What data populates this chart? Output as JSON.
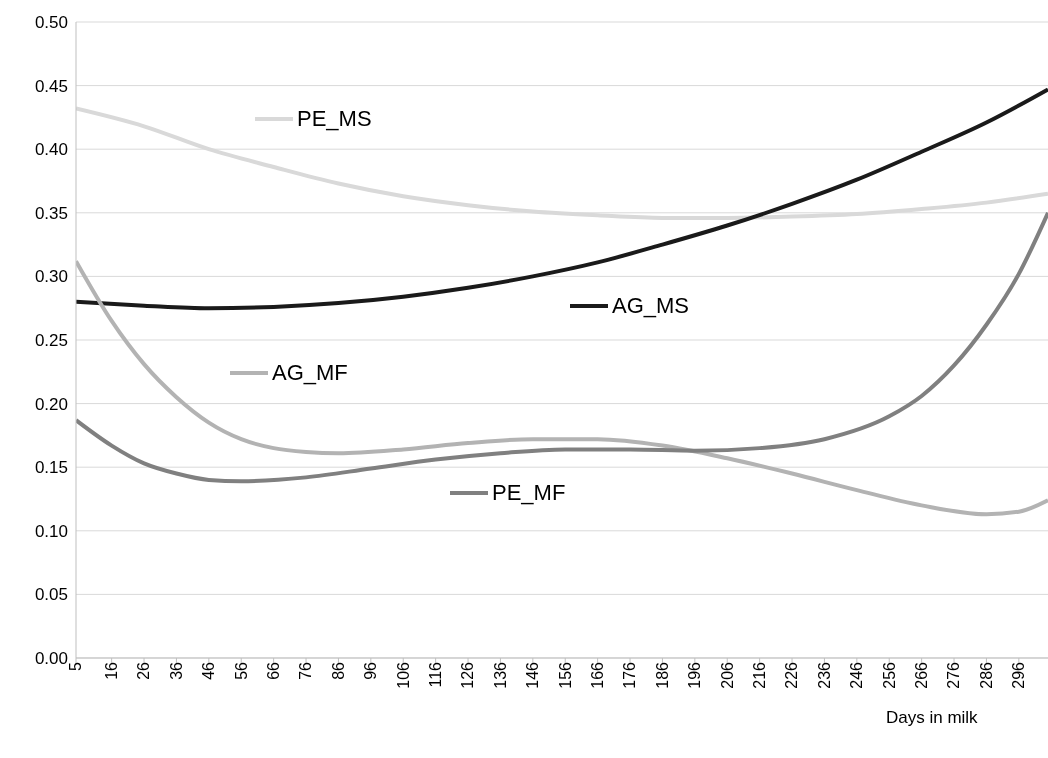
{
  "chart_data": {
    "type": "line",
    "xlabel": "Days in milk",
    "xlim": [
      5,
      305
    ],
    "xticks": [
      5,
      16,
      26,
      36,
      46,
      56,
      66,
      76,
      86,
      96,
      106,
      116,
      126,
      136,
      146,
      156,
      166,
      176,
      186,
      196,
      206,
      216,
      226,
      236,
      246,
      256,
      266,
      276,
      286,
      296
    ],
    "ylim": [
      0,
      0.5
    ],
    "yticks": [
      {
        "value": 0,
        "label": "0.00"
      },
      {
        "value": 0.05,
        "label": "0.05"
      },
      {
        "value": 0.1,
        "label": "0.10"
      },
      {
        "value": 0.15,
        "label": "0.15"
      },
      {
        "value": 0.2,
        "label": "0.20"
      },
      {
        "value": 0.25,
        "label": "0.25"
      },
      {
        "value": 0.3,
        "label": "0.30"
      },
      {
        "value": 0.35,
        "label": "0.35"
      },
      {
        "value": 0.4,
        "label": "0.40"
      },
      {
        "value": 0.45,
        "label": "0.45"
      },
      {
        "value": 0.5,
        "label": "0.50"
      }
    ],
    "grid": "y",
    "legend": "left",
    "marker": "none",
    "line_style": "solid",
    "series": [
      {
        "name": "PE_MS",
        "color": "#d9d9d9",
        "x": [
          5,
          26,
          46,
          66,
          86,
          106,
          126,
          146,
          166,
          186,
          206,
          226,
          246,
          266,
          286,
          305
        ],
        "values": [
          0.432,
          0.418,
          0.4,
          0.386,
          0.373,
          0.363,
          0.356,
          0.351,
          0.348,
          0.346,
          0.346,
          0.347,
          0.349,
          0.353,
          0.358,
          0.365
        ]
      },
      {
        "name": "AG_MS",
        "color": "#1a1a1a",
        "x": [
          5,
          26,
          46,
          66,
          86,
          106,
          126,
          146,
          166,
          186,
          206,
          226,
          246,
          266,
          286,
          305
        ],
        "values": [
          0.28,
          0.277,
          0.275,
          0.276,
          0.279,
          0.284,
          0.291,
          0.3,
          0.311,
          0.325,
          0.34,
          0.357,
          0.376,
          0.398,
          0.421,
          0.447
        ]
      },
      {
        "name": "AG_MF",
        "color": "#b3b3b3",
        "x": [
          5,
          16,
          26,
          36,
          46,
          56,
          66,
          76,
          86,
          106,
          126,
          146,
          166,
          186,
          206,
          226,
          246,
          266,
          286,
          296,
          305
        ],
        "values": [
          0.312,
          0.265,
          0.231,
          0.205,
          0.185,
          0.172,
          0.165,
          0.162,
          0.161,
          0.164,
          0.169,
          0.172,
          0.172,
          0.167,
          0.157,
          0.145,
          0.132,
          0.12,
          0.113,
          0.115,
          0.124
        ]
      },
      {
        "name": "PE_MF",
        "color": "#808080",
        "x": [
          5,
          16,
          26,
          36,
          46,
          56,
          76,
          96,
          116,
          136,
          156,
          176,
          196,
          216,
          236,
          256,
          266,
          276,
          286,
          296,
          305
        ],
        "values": [
          0.187,
          0.167,
          0.153,
          0.145,
          0.14,
          0.139,
          0.142,
          0.149,
          0.156,
          0.161,
          0.164,
          0.164,
          0.163,
          0.165,
          0.172,
          0.19,
          0.206,
          0.23,
          0.262,
          0.302,
          0.35
        ]
      }
    ]
  }
}
